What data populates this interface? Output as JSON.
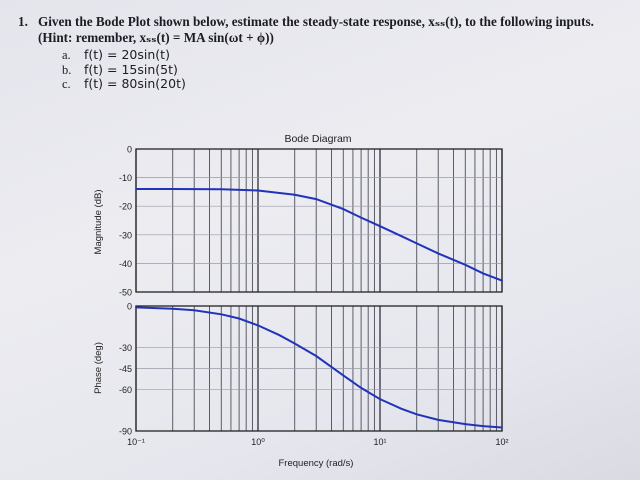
{
  "problem": {
    "number": "1.",
    "statement": "Given the Bode Plot shown below, estimate the steady-state response, xₛₛ(t), to the following inputs.",
    "hint": "(Hint: remember, xₛₛ(t) = MA sin(ωt + ϕ))",
    "inputs": [
      {
        "label": "a.",
        "expr": "f(t) = 20sin(t)"
      },
      {
        "label": "b.",
        "expr": "f(t) = 15sin(5t)"
      },
      {
        "label": "c.",
        "expr": "f(t) = 80sin(20t)"
      }
    ]
  },
  "chart_data": [
    {
      "type": "line",
      "title": "Bode Diagram",
      "ylabel": "Magnitude (dB)",
      "xscale": "log",
      "xlim": [
        0.1,
        100
      ],
      "ylim": [
        -50,
        0
      ],
      "yticks": [
        "0",
        "-10",
        "-20",
        "-30",
        "-40",
        "-50"
      ],
      "grid": true,
      "color": "#2233bb",
      "x": [
        0.1,
        0.2,
        0.5,
        1,
        2,
        3,
        5,
        7,
        10,
        15,
        20,
        30,
        50,
        70,
        100
      ],
      "y": [
        -14,
        -14,
        -14.1,
        -14.5,
        -16,
        -17.5,
        -21,
        -24,
        -27,
        -30.5,
        -33,
        -36.5,
        -40.5,
        -43.5,
        -46
      ]
    },
    {
      "type": "line",
      "ylabel": "Phase (deg)",
      "xlabel": "Frequency (rad/s)",
      "xscale": "log",
      "xlim": [
        0.1,
        100
      ],
      "ylim": [
        -90,
        0
      ],
      "yticks": [
        "0",
        "-30",
        "-45",
        "-60",
        "-90"
      ],
      "xticks": [
        "10⁻¹",
        "10⁰",
        "10¹",
        "10²"
      ],
      "grid": true,
      "color": "#2233bb",
      "x": [
        0.1,
        0.2,
        0.3,
        0.5,
        0.7,
        1,
        1.5,
        2,
        3,
        5,
        7,
        10,
        15,
        20,
        30,
        50,
        70,
        100
      ],
      "y": [
        -1,
        -2,
        -3,
        -6,
        -9,
        -14,
        -21,
        -27,
        -36,
        -50,
        -59,
        -67,
        -74,
        -78,
        -82,
        -85,
        -86.5,
        -87.5
      ]
    }
  ]
}
